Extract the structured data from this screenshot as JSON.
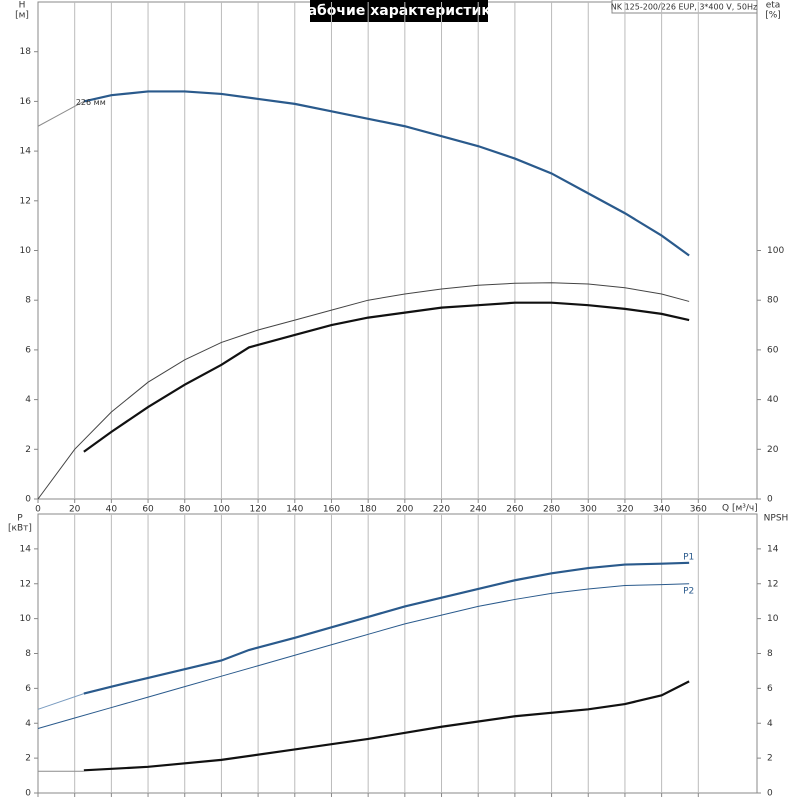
{
  "chart_data": [
    {
      "type": "line",
      "title": "Рабочие характеристики",
      "subtitle": "NK 125-200/226 EUP, 3*400 V, 50Hz",
      "ylabel": "H",
      "yunit": "[м]",
      "y2label": "eta",
      "y2unit": "[%]",
      "xlabel": "Q [м³/ч]",
      "annotation": "226 мм",
      "xlim": [
        0,
        392
      ],
      "xticks": [
        0,
        20,
        40,
        60,
        80,
        100,
        120,
        140,
        160,
        180,
        200,
        220,
        240,
        260,
        280,
        300,
        320,
        340,
        360
      ],
      "ylim": [
        0,
        20
      ],
      "yticks": [
        0,
        2,
        4,
        6,
        8,
        10,
        12,
        14,
        16,
        18
      ],
      "y2lim": [
        0,
        200
      ],
      "y2ticks": [
        0,
        20,
        40,
        60,
        80,
        100
      ],
      "grid": "x",
      "series": [
        {
          "color": "#8c8c8c",
          "style": "thin",
          "x": [
            0,
            10,
            20,
            25
          ],
          "values": [
            15.0,
            15.4,
            15.8,
            16.0
          ]
        },
        {
          "color": "#2a5a8c",
          "style": "bold",
          "x": [
            25,
            40,
            60,
            80,
            100,
            120,
            140,
            160,
            180,
            200,
            220,
            240,
            260,
            280,
            300,
            320,
            340,
            355
          ],
          "values": [
            16.0,
            16.25,
            16.4,
            16.4,
            16.3,
            16.1,
            15.9,
            15.6,
            15.3,
            15.0,
            14.6,
            14.2,
            13.7,
            13.1,
            12.3,
            11.5,
            10.6,
            9.8
          ]
        },
        {
          "color": "#444444",
          "style": "thin",
          "axis": "y2",
          "x": [
            0,
            20,
            40,
            60,
            80,
            100,
            120,
            140,
            160,
            180,
            200,
            220,
            240,
            260,
            280,
            300,
            320,
            340,
            355
          ],
          "values": [
            0,
            20,
            35,
            47,
            56,
            63,
            68,
            72,
            76,
            80,
            82.5,
            84.5,
            86,
            86.8,
            87,
            86.5,
            85,
            82.5,
            79.5
          ]
        },
        {
          "color": "#111111",
          "style": "bold",
          "axis": "y2",
          "x": [
            25,
            40,
            60,
            80,
            100,
            115,
            140,
            160,
            180,
            200,
            220,
            240,
            260,
            280,
            300,
            320,
            340,
            355
          ],
          "values": [
            19,
            27,
            37,
            46,
            54,
            61,
            66,
            70,
            73,
            75,
            77,
            78,
            79,
            79,
            78,
            76.5,
            74.5,
            72
          ]
        }
      ]
    },
    {
      "type": "line",
      "ylabel": "P",
      "yunit": "[кВт]",
      "y2label": "NPSH",
      "xlim": [
        0,
        392
      ],
      "ylim": [
        0,
        16
      ],
      "yticks": [
        0,
        2,
        4,
        6,
        8,
        10,
        12,
        14
      ],
      "y2lim": [
        0,
        16
      ],
      "y2ticks": [
        0,
        2,
        4,
        6,
        8,
        10,
        12,
        14
      ],
      "grid": "x",
      "series": [
        {
          "color": "#7a9cc0",
          "style": "thin",
          "x": [
            0,
            25
          ],
          "values": [
            4.8,
            5.7
          ]
        },
        {
          "name": "P1",
          "color": "#2a5a8c",
          "style": "bold",
          "x": [
            25,
            40,
            60,
            80,
            100,
            115,
            140,
            160,
            180,
            200,
            220,
            240,
            260,
            280,
            300,
            320,
            340,
            355
          ],
          "values": [
            5.7,
            6.1,
            6.6,
            7.1,
            7.6,
            8.2,
            8.9,
            9.5,
            10.1,
            10.7,
            11.2,
            11.7,
            12.2,
            12.6,
            12.9,
            13.1,
            13.15,
            13.2
          ]
        },
        {
          "name": "P2",
          "color": "#2a5a8c",
          "style": "thin",
          "x": [
            0,
            20,
            40,
            60,
            80,
            100,
            120,
            140,
            160,
            180,
            200,
            220,
            240,
            260,
            280,
            300,
            320,
            340,
            355
          ],
          "values": [
            3.7,
            4.3,
            4.9,
            5.5,
            6.1,
            6.7,
            7.3,
            7.9,
            8.5,
            9.1,
            9.7,
            10.2,
            10.7,
            11.1,
            11.45,
            11.7,
            11.9,
            11.95,
            12.0
          ]
        },
        {
          "color": "#8c8c8c",
          "style": "thin",
          "axis": "y2",
          "x": [
            0,
            25
          ],
          "values": [
            1.25,
            1.25
          ]
        },
        {
          "color": "#111111",
          "style": "bold",
          "axis": "y2",
          "x": [
            25,
            60,
            100,
            140,
            180,
            220,
            260,
            300,
            320,
            340,
            355
          ],
          "values": [
            1.3,
            1.5,
            1.9,
            2.5,
            3.1,
            3.8,
            4.4,
            4.8,
            5.1,
            5.6,
            6.4
          ]
        }
      ]
    }
  ]
}
